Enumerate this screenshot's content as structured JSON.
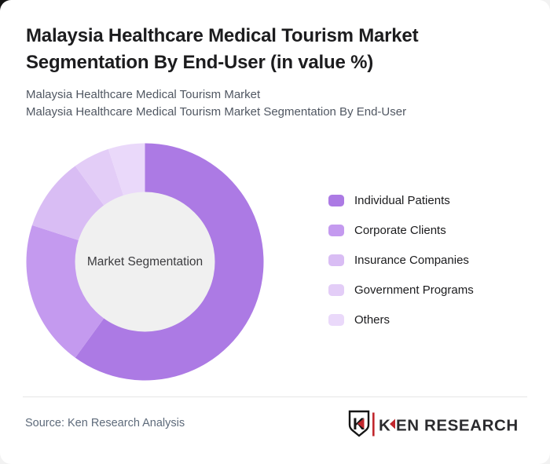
{
  "header": {
    "title": "Malaysia Healthcare Medical Tourism Market Segmentation By End-User (in value %)",
    "subtitle_line1": "Malaysia Healthcare Medical Tourism Market",
    "subtitle_line2": "Malaysia Healthcare Medical Tourism Market Segmentation By End-User"
  },
  "chart_data": {
    "type": "pie",
    "variant": "donut",
    "title": "Malaysia Healthcare Medical Tourism Market Segmentation By End-User (in value %)",
    "center_label": "Market Segmentation",
    "center_fill": "#f0f0f0",
    "start_angle_deg": 0,
    "direction": "clockwise",
    "unit": "%",
    "legend_position": "right",
    "categories": [
      "Individual Patients",
      "Corporate Clients",
      "Insurance Companies",
      "Government Programs",
      "Others"
    ],
    "values": [
      60,
      20,
      10,
      5,
      5
    ],
    "colors": [
      "#ac7ae4",
      "#c49aef",
      "#d9bdf4",
      "#e3cdf7",
      "#ead9fa"
    ]
  },
  "footer": {
    "source": "Source: Ken Research Analysis",
    "brand": "KEN RESEARCH",
    "brand_red": "#c1272d",
    "brand_text_color": "#2b2b2e"
  }
}
